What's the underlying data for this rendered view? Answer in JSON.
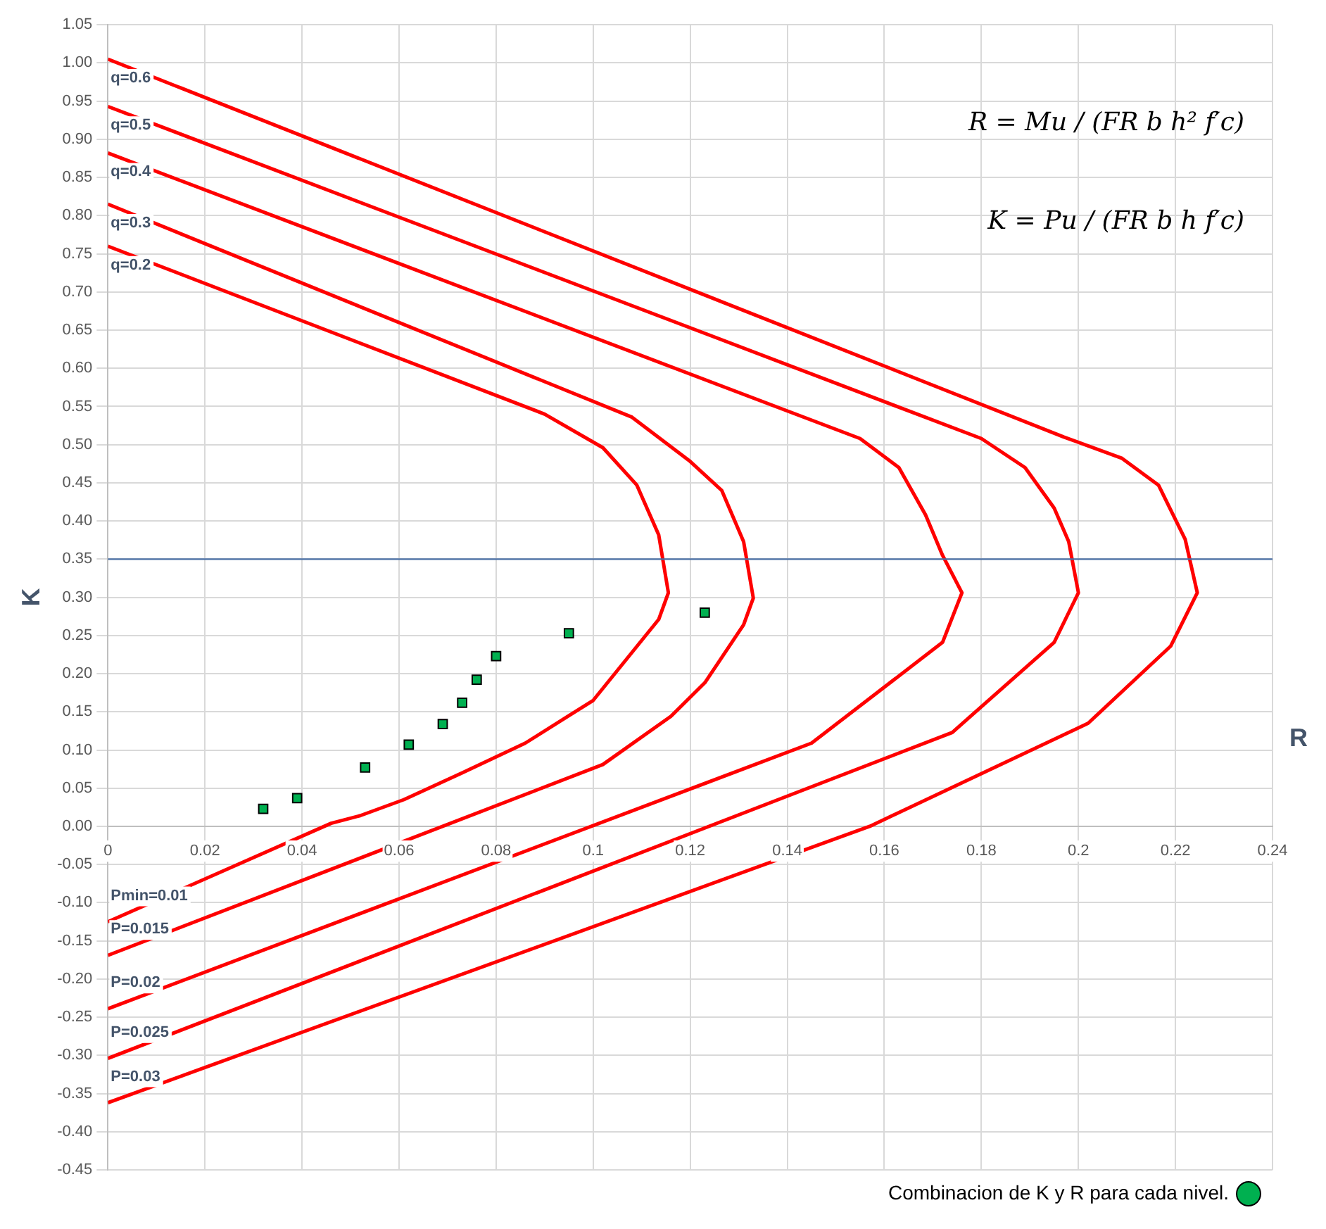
{
  "chart_data": {
    "type": "line",
    "xlabel": "R",
    "ylabel": "K",
    "xlim": [
      0,
      0.24
    ],
    "xticks": [
      0,
      0.02,
      0.04,
      0.06,
      0.08,
      0.1,
      0.12,
      0.14,
      0.16,
      0.18,
      0.2,
      0.22,
      0.24
    ],
    "ylim": [
      -0.45,
      1.05
    ],
    "yticks": [
      {
        "value": -0.45,
        "label": "-0.45"
      },
      {
        "value": -0.4,
        "label": "-0.40"
      },
      {
        "value": -0.35,
        "label": "-0.35"
      },
      {
        "value": -0.3,
        "label": "-0.30"
      },
      {
        "value": -0.25,
        "label": "-0.25"
      },
      {
        "value": -0.2,
        "label": "-0.20"
      },
      {
        "value": -0.15,
        "label": "-0.15"
      },
      {
        "value": -0.1,
        "label": "-0.10"
      },
      {
        "value": -0.05,
        "label": "-0.05"
      },
      {
        "value": 0,
        "label": "0.00"
      },
      {
        "value": 0.05,
        "label": "0.05"
      },
      {
        "value": 0.1,
        "label": "0.10"
      },
      {
        "value": 0.15,
        "label": "0.15"
      },
      {
        "value": 0.2,
        "label": "0.20"
      },
      {
        "value": 0.25,
        "label": "0.25"
      },
      {
        "value": 0.3,
        "label": "0.30"
      },
      {
        "value": 0.35,
        "label": "0.35"
      },
      {
        "value": 0.4,
        "label": "0.40"
      },
      {
        "value": 0.45,
        "label": "0.45"
      },
      {
        "value": 0.5,
        "label": "0.50"
      },
      {
        "value": 0.55,
        "label": "0.55"
      },
      {
        "value": 0.6,
        "label": "0.60"
      },
      {
        "value": 0.65,
        "label": "0.65"
      },
      {
        "value": 0.7,
        "label": "0.70"
      },
      {
        "value": 0.75,
        "label": "0.75"
      },
      {
        "value": 0.8,
        "label": "0.80"
      },
      {
        "value": 0.85,
        "label": "0.85"
      },
      {
        "value": 0.9,
        "label": "0.90"
      },
      {
        "value": 0.95,
        "label": "0.95"
      },
      {
        "value": 1,
        "label": "1.00"
      },
      {
        "value": 1.05,
        "label": "1.05"
      }
    ],
    "grid": true,
    "legend": "bottom right",
    "line_style": "solid",
    "series": [
      {
        "type": "line",
        "color": "#ff0000",
        "x": [
          0,
          0.09,
          0.102,
          0.109,
          0.1135,
          0.1155,
          0.1135,
          0.1,
          0.086,
          0.073,
          0.061,
          0.052,
          0.046,
          0
        ],
        "values": [
          0.76,
          0.54,
          0.496,
          0.447,
          0.382,
          0.306,
          0.271,
          0.165,
          0.109,
          0.07,
          0.035,
          0.014,
          0.004,
          -0.125
        ]
      },
      {
        "type": "line",
        "color": "#ff0000",
        "x": [
          0,
          0.108,
          0.12,
          0.1265,
          0.131,
          0.133,
          0.131,
          0.123,
          0.116,
          0.102,
          0
        ],
        "values": [
          0.815,
          0.536,
          0.478,
          0.44,
          0.373,
          0.299,
          0.264,
          0.188,
          0.144,
          0.081,
          -0.169
        ]
      },
      {
        "type": "line",
        "color": "#ff0000",
        "x": [
          0,
          0.155,
          0.163,
          0.1685,
          0.172,
          0.176,
          0.172,
          0.145,
          0
        ],
        "values": [
          0.882,
          0.508,
          0.47,
          0.408,
          0.355,
          0.306,
          0.241,
          0.109,
          -0.239
        ]
      },
      {
        "type": "line",
        "color": "#ff0000",
        "x": [
          0,
          0.18,
          0.189,
          0.195,
          0.198,
          0.2,
          0.195,
          0.174,
          0
        ],
        "values": [
          0.943,
          0.508,
          0.47,
          0.417,
          0.373,
          0.306,
          0.241,
          0.123,
          -0.304
        ]
      },
      {
        "type": "line",
        "color": "#ff0000",
        "x": [
          0,
          0.197,
          0.209,
          0.2165,
          0.222,
          0.2245,
          0.219,
          0.202,
          0.157,
          0
        ],
        "values": [
          1.005,
          0.51,
          0.482,
          0.447,
          0.376,
          0.306,
          0.236,
          0.135,
          0,
          -0.362
        ]
      },
      {
        "type": "scatter",
        "name": "Combinacion de K y R para cada nivel.",
        "color": "#00b050",
        "marker": "square",
        "x": [
          0.032,
          0.039,
          0.053,
          0.062,
          0.069,
          0.073,
          0.076,
          0.08,
          0.095,
          0.123
        ],
        "values": [
          0.023,
          0.037,
          0.077,
          0.107,
          0.134,
          0.162,
          0.192,
          0.223,
          0.253,
          0.28
        ]
      }
    ],
    "ref_lines": [
      {
        "axis": "y",
        "value": 0.35,
        "color": "#4a6fa5"
      }
    ],
    "annotations": [
      "q=0.6",
      "q=0.5",
      "q=0.4",
      "q=0.3",
      "q=0.2",
      "Pmin=0.01",
      "P=0.015",
      "P=0.02",
      "P=0.025",
      "P=0.03",
      "R = Mu / (FR b h² f′c)",
      "K = Pu / (FR b h f′c)"
    ]
  }
}
